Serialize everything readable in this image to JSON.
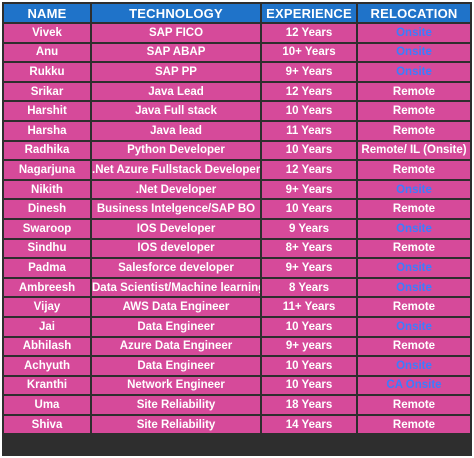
{
  "colors": {
    "header_bg": "#1f73c9",
    "row_bg": "#d64a9a",
    "grid": "#2e2e2e",
    "text": "#ffffff",
    "onsite_text": "#3a7dff"
  },
  "headers": [
    "NAME",
    "TECHNOLOGY",
    "EXPERIENCE",
    "RELOCATION"
  ],
  "rows": [
    {
      "name": "Vivek",
      "technology": "SAP FICO",
      "experience": "12 Years",
      "relocation": "Onsite",
      "onsite": true
    },
    {
      "name": "Anu",
      "technology": "SAP ABAP",
      "experience": "10+ Years",
      "relocation": "Onsite",
      "onsite": true
    },
    {
      "name": "Rukku",
      "technology": "SAP PP",
      "experience": "9+ Years",
      "relocation": "Onsite",
      "onsite": true
    },
    {
      "name": "Srikar",
      "technology": "Java Lead",
      "experience": "12 Years",
      "relocation": "Remote",
      "onsite": false
    },
    {
      "name": "Harshit",
      "technology": "Java Full stack",
      "experience": "10 Years",
      "relocation": "Remote",
      "onsite": false
    },
    {
      "name": "Harsha",
      "technology": "Java lead",
      "experience": "11 Years",
      "relocation": "Remote",
      "onsite": false
    },
    {
      "name": "Radhika",
      "technology": "Python Developer",
      "experience": "10 Years",
      "relocation": "Remote/ IL (Onsite)",
      "onsite": false
    },
    {
      "name": "Nagarjuna",
      "technology": ".Net Azure Fullstack Developer",
      "experience": "12 Years",
      "relocation": "Remote",
      "onsite": false
    },
    {
      "name": "Nikith",
      "technology": ".Net Developer",
      "experience": "9+ Years",
      "relocation": "Onsite",
      "onsite": true
    },
    {
      "name": "Dinesh",
      "technology": "Business Intelgence/SAP BO",
      "experience": "10 Years",
      "relocation": "Remote",
      "onsite": false
    },
    {
      "name": "Swaroop",
      "technology": "IOS Developer",
      "experience": "9 Years",
      "relocation": "Onsite",
      "onsite": true
    },
    {
      "name": "Sindhu",
      "technology": "IOS developer",
      "experience": "8+ Years",
      "relocation": "Remote",
      "onsite": false
    },
    {
      "name": "Padma",
      "technology": "Salesforce developer",
      "experience": "9+ Years",
      "relocation": "Onsite",
      "onsite": true
    },
    {
      "name": "Ambreesh",
      "technology": "Data Scientist/Machine learning",
      "experience": "8 Years",
      "relocation": "Onsite",
      "onsite": true
    },
    {
      "name": "Vijay",
      "technology": "AWS Data Engineer",
      "experience": "11+ Years",
      "relocation": "Remote",
      "onsite": false
    },
    {
      "name": "Jai",
      "technology": "Data Engineer",
      "experience": "10 Years",
      "relocation": "Onsite",
      "onsite": true
    },
    {
      "name": "Abhilash",
      "technology": "Azure Data Engineer",
      "experience": "9+ years",
      "relocation": "Remote",
      "onsite": false
    },
    {
      "name": "Achyuth",
      "technology": "Data Engineer",
      "experience": "10 Years",
      "relocation": "Onsite",
      "onsite": true
    },
    {
      "name": "Kranthi",
      "technology": "Network Engineer",
      "experience": "10 Years",
      "relocation": "CA Onsite",
      "onsite": true
    },
    {
      "name": "Uma",
      "technology": "Site Reliability",
      "experience": "18 Years",
      "relocation": "Remote",
      "onsite": false
    },
    {
      "name": "Shiva",
      "technology": "Site Reliability",
      "experience": "14 Years",
      "relocation": "Remote",
      "onsite": false
    }
  ]
}
